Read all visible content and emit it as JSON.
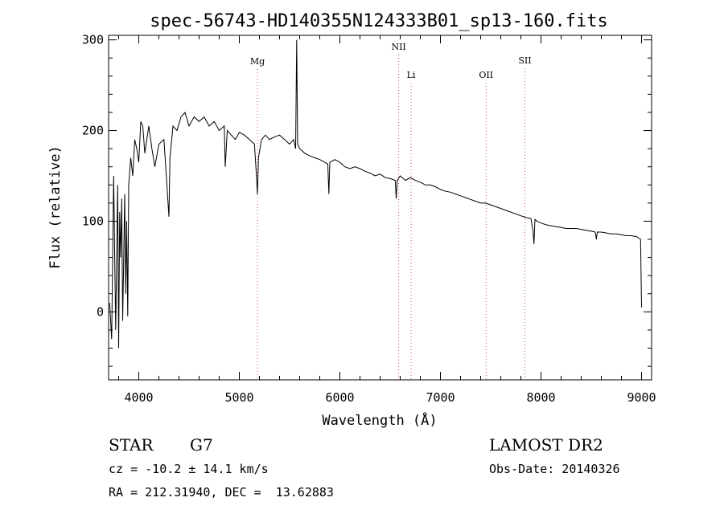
{
  "chart_data": {
    "type": "line",
    "title": "spec-56743-HD140355N124333B01_sp13-160.fits",
    "xlabel": "Wavelength (Å)",
    "ylabel": "Flux (relative)",
    "xlim": [
      3700,
      9100
    ],
    "ylim": [
      -75,
      305
    ],
    "xticks": [
      4000,
      5000,
      6000,
      7000,
      8000,
      9000
    ],
    "yticks": [
      0,
      100,
      200,
      300
    ],
    "grid": false,
    "series": [
      {
        "x": [
          3710,
          3730,
          3750,
          3770,
          3790,
          3800,
          3810,
          3820,
          3830,
          3840,
          3850,
          3860,
          3870,
          3880,
          3890,
          3900,
          3920,
          3940,
          3960,
          3980,
          4000,
          4020,
          4040,
          4060,
          4080,
          4100,
          4130,
          4160,
          4200,
          4250,
          4300,
          4310,
          4340,
          4380,
          4420,
          4460,
          4500,
          4550,
          4600,
          4650,
          4700,
          4750,
          4800,
          4850,
          4860,
          4880,
          4920,
          4960,
          5000,
          5050,
          5100,
          5150,
          5170,
          5180,
          5190,
          5220,
          5260,
          5300,
          5350,
          5400,
          5450,
          5500,
          5540,
          5560,
          5570,
          5580,
          5600,
          5650,
          5700,
          5750,
          5800,
          5850,
          5880,
          5890,
          5900,
          5950,
          6000,
          6050,
          6100,
          6150,
          6200,
          6250,
          6300,
          6350,
          6400,
          6450,
          6500,
          6550,
          6560,
          6570,
          6600,
          6650,
          6700,
          6750,
          6800,
          6850,
          6900,
          6950,
          7000,
          7050,
          7100,
          7150,
          7200,
          7250,
          7300,
          7350,
          7400,
          7450,
          7500,
          7550,
          7600,
          7650,
          7700,
          7750,
          7800,
          7850,
          7900,
          7920,
          7930,
          7940,
          7960,
          8000,
          8050,
          8100,
          8150,
          8200,
          8250,
          8300,
          8350,
          8400,
          8450,
          8500,
          8540,
          8550,
          8560,
          8600,
          8650,
          8700,
          8750,
          8800,
          8850,
          8900,
          8950,
          8990,
          9000
        ],
        "y": [
          10,
          -30,
          150,
          -20,
          140,
          -40,
          110,
          60,
          125,
          -10,
          60,
          130,
          20,
          100,
          -5,
          140,
          170,
          150,
          190,
          180,
          165,
          210,
          205,
          175,
          190,
          205,
          180,
          160,
          185,
          190,
          105,
          170,
          205,
          200,
          215,
          220,
          205,
          215,
          210,
          215,
          205,
          210,
          200,
          205,
          160,
          200,
          195,
          190,
          198,
          195,
          190,
          185,
          150,
          130,
          170,
          190,
          195,
          190,
          193,
          195,
          190,
          185,
          190,
          180,
          300,
          185,
          180,
          175,
          172,
          170,
          168,
          165,
          163,
          130,
          165,
          168,
          165,
          160,
          158,
          160,
          158,
          155,
          153,
          150,
          152,
          148,
          147,
          145,
          125,
          145,
          150,
          145,
          148,
          145,
          143,
          140,
          140,
          138,
          135,
          133,
          132,
          130,
          128,
          126,
          124,
          122,
          120,
          120,
          118,
          116,
          114,
          112,
          110,
          108,
          106,
          104,
          103,
          90,
          75,
          102,
          100,
          98,
          96,
          95,
          94,
          93,
          92,
          92,
          92,
          91,
          90,
          89,
          88,
          80,
          88,
          88,
          87,
          86,
          86,
          85,
          84,
          84,
          83,
          80,
          5
        ]
      }
    ],
    "annotations": [
      {
        "label": "Mg",
        "x": 5180
      },
      {
        "label": "NII",
        "x": 6585
      },
      {
        "label": "Li",
        "x": 6708
      },
      {
        "label": "OII",
        "x": 7454
      },
      {
        "label": "SII",
        "x": 7840
      }
    ]
  },
  "info": {
    "obj_class": "STAR",
    "subclass": "G7",
    "survey": "LAMOST DR2",
    "cz": "cz = -10.2 ± 14.1 km/s",
    "obs_date": "Obs-Date: 20140326",
    "radec": "RA = 212.31940, DEC =  13.62883"
  }
}
